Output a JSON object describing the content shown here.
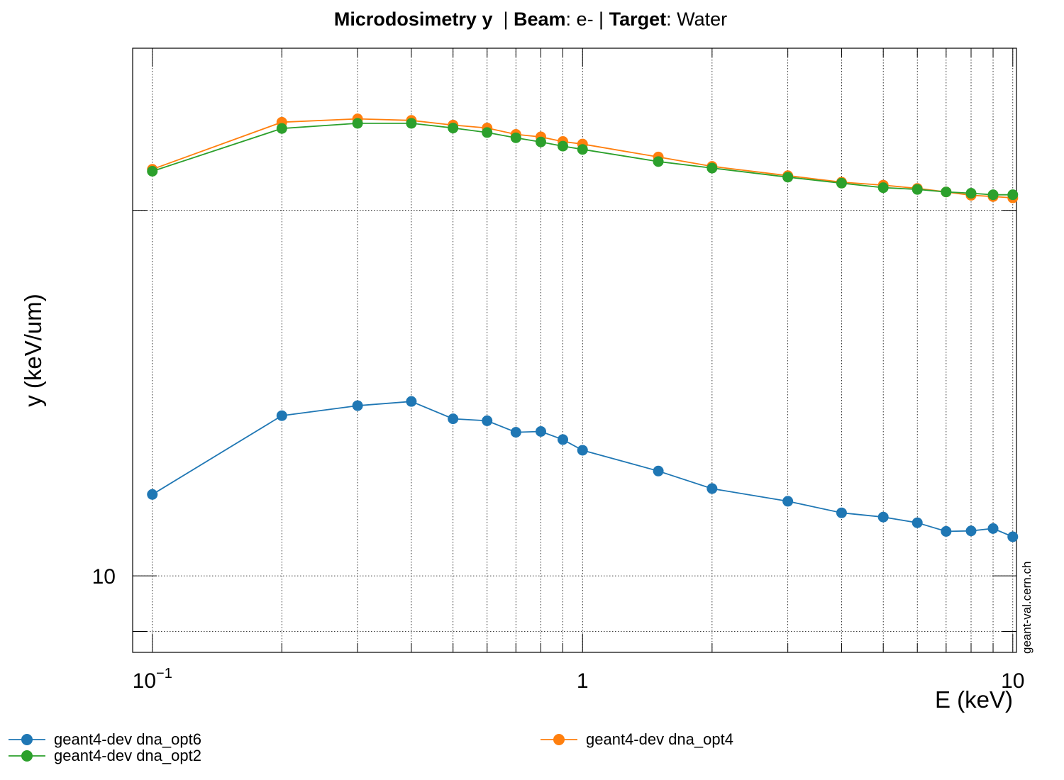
{
  "chart_data": {
    "type": "line",
    "title": {
      "parts": [
        {
          "text": "Microdosimetry y ",
          "bold": true
        },
        {
          "text": " | ",
          "bold": false
        },
        {
          "text": "Beam",
          "bold": true
        },
        {
          "text": ": e- | ",
          "bold": false
        },
        {
          "text": "Target",
          "bold": true
        },
        {
          "text": ": Water",
          "bold": false
        }
      ]
    },
    "xlabel": "E (keV)",
    "ylabel": "y (keV/um)",
    "x_scale": "log",
    "y_scale": "log",
    "xlim": [
      0.09,
      10.2
    ],
    "ylim": [
      8.65,
      27.2
    ],
    "x_ticks": [
      {
        "value": 0.1,
        "base": "10",
        "exp": "−1"
      },
      {
        "value": 1,
        "base": "1",
        "exp": ""
      },
      {
        "value": 10,
        "base": "10",
        "exp": ""
      }
    ],
    "y_ticks": [
      {
        "value": 10,
        "label": "10"
      }
    ],
    "grid": true,
    "legend_position": "bottom",
    "x": [
      0.1,
      0.2,
      0.3,
      0.4,
      0.5,
      0.6,
      0.7,
      0.8,
      0.9,
      1,
      1.5,
      2,
      3,
      4,
      5,
      6,
      7,
      8,
      9,
      10
    ],
    "series": [
      {
        "name": "geant4-dev dna_opt6",
        "color": "#1f77b4",
        "values": [
          11.67,
          13.55,
          13.81,
          13.92,
          13.47,
          13.42,
          13.13,
          13.15,
          12.95,
          12.69,
          12.2,
          11.8,
          11.52,
          11.27,
          11.18,
          11.06,
          10.88,
          10.89,
          10.94,
          10.77
        ]
      },
      {
        "name": "geant4-dev dna_opt2",
        "color": "#2ca02c",
        "values": [
          21.54,
          23.36,
          23.59,
          23.59,
          23.38,
          23.18,
          22.95,
          22.77,
          22.59,
          22.45,
          21.94,
          21.67,
          21.3,
          21.06,
          20.88,
          20.81,
          20.71,
          20.66,
          20.6,
          20.6
        ]
      },
      {
        "name": "geant4-dev dna_opt4",
        "color": "#ff7f0e",
        "values": [
          21.62,
          23.64,
          23.79,
          23.72,
          23.51,
          23.38,
          23.1,
          22.99,
          22.79,
          22.68,
          22.13,
          21.74,
          21.36,
          21.1,
          20.98,
          20.85,
          20.71,
          20.58,
          20.53,
          20.48
        ]
      }
    ]
  },
  "watermark": "geant-val.cern.ch"
}
